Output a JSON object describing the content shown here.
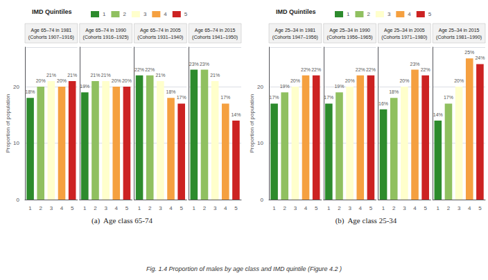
{
  "chart_data": [
    {
      "type": "bar",
      "title": "Age 65–74 in 1981\n(Cohorts 1907–1916)",
      "categories": [
        "1",
        "2",
        "3",
        "4",
        "5"
      ],
      "values": [
        18,
        20,
        21,
        20,
        21
      ],
      "value_labels": [
        "18%",
        "20%",
        "21%",
        "20%",
        "21%"
      ],
      "colors": [
        "#2d8b2d",
        "#90c060",
        "#ffffcc",
        "#f5a040",
        "#cc2222"
      ],
      "ylabel": "Proportion of population",
      "ylim": [
        0,
        27
      ],
      "yticks": [
        0,
        10,
        20
      ],
      "grid": true,
      "data_labels": true,
      "legend": "top",
      "legend_title": "IMD Quintiles",
      "annotations": [
        "(a)  Age class 65-74",
        "Fig. 1.4 Proportion of males by age class and IMD quintile (Figure 4.2 )"
      ]
    },
    {
      "type": "bar",
      "title": "Age 65–74 in 1990\n(Cohorts 1916–1925)",
      "categories": [
        "1",
        "2",
        "3",
        "4",
        "5"
      ],
      "values": [
        19,
        21,
        21,
        20,
        20
      ],
      "value_labels": [
        "19%",
        "21%",
        "21%",
        "20%",
        "20%"
      ],
      "colors": [
        "#2d8b2d",
        "#90c060",
        "#ffffcc",
        "#f5a040",
        "#cc2222"
      ],
      "ylim": [
        0,
        27
      ],
      "yticks": [
        0,
        10,
        20
      ],
      "grid": true,
      "data_labels": true,
      "tick_labels": "x"
    },
    {
      "type": "bar",
      "title": "Age 65–74 in 2005\n(Cohorts 1931–1940)",
      "categories": [
        "1",
        "2",
        "3",
        "4",
        "5"
      ],
      "values": [
        22,
        22,
        21,
        18,
        17
      ],
      "value_labels": [
        "22%",
        "22%",
        "21%",
        "18%",
        "17%"
      ],
      "colors": [
        "#2d8b2d",
        "#90c060",
        "#ffffcc",
        "#f5a040",
        "#cc2222"
      ],
      "ylim": [
        0,
        27
      ],
      "yticks": [
        0,
        10,
        20
      ],
      "grid": true,
      "data_labels": true,
      "tick_labels": "x"
    },
    {
      "type": "bar",
      "title": "Age 65–74 in 2015\n(Cohorts 1941–1950)",
      "categories": [
        "1",
        "2",
        "3",
        "4",
        "5"
      ],
      "values": [
        23,
        23,
        21,
        17,
        14
      ],
      "value_labels": [
        "23%",
        "23%",
        "21%",
        "17%",
        "14%"
      ],
      "colors": [
        "#2d8b2d",
        "#90c060",
        "#ffffcc",
        "#f5a040",
        "#cc2222"
      ],
      "ylim": [
        0,
        27
      ],
      "yticks": [
        0,
        10,
        20
      ],
      "grid": true,
      "data_labels": true,
      "tick_labels": "x"
    },
    {
      "type": "bar",
      "title": "Age 25–34 in 1981\n(Cohorts 1947–1956)",
      "categories": [
        "1",
        "2",
        "3",
        "4",
        "5"
      ],
      "values": [
        17,
        19,
        20,
        22,
        22
      ],
      "value_labels": [
        "17%",
        "19%",
        "20%",
        "22%",
        "22%"
      ],
      "colors": [
        "#2d8b2d",
        "#90c060",
        "#ffffcc",
        "#f5a040",
        "#cc2222"
      ],
      "ylabel": "Proportion of population",
      "ylim": [
        0,
        27
      ],
      "yticks": [
        0,
        10,
        20
      ],
      "grid": true,
      "data_labels": true,
      "legend": "top",
      "legend_title": "IMD Quintiles",
      "annotations": [
        "(b)  Age class 25-34"
      ]
    },
    {
      "type": "bar",
      "title": "Age 25–34 in 1990\n(Cohorts 1956–1965)",
      "categories": [
        "1",
        "2",
        "3",
        "4",
        "5"
      ],
      "values": [
        17,
        19,
        20,
        22,
        22
      ],
      "value_labels": [
        "17%",
        "19%",
        "20%",
        "22%",
        "22%"
      ],
      "colors": [
        "#2d8b2d",
        "#90c060",
        "#ffffcc",
        "#f5a040",
        "#cc2222"
      ],
      "ylim": [
        0,
        27
      ],
      "yticks": [
        0,
        10,
        20
      ],
      "grid": true,
      "data_labels": true,
      "tick_labels": "x"
    },
    {
      "type": "bar",
      "title": "Age 25–34 in 2005\n(Cohorts 1971–1980)",
      "categories": [
        "1",
        "2",
        "3",
        "4",
        "5"
      ],
      "values": [
        16,
        18,
        20,
        23,
        22
      ],
      "value_labels": [
        "16%",
        "18%",
        "20%",
        "23%",
        "22%"
      ],
      "colors": [
        "#2d8b2d",
        "#90c060",
        "#ffffcc",
        "#f5a040",
        "#cc2222"
      ],
      "ylim": [
        0,
        27
      ],
      "yticks": [
        0,
        10,
        20
      ],
      "grid": true,
      "data_labels": true,
      "tick_labels": "x"
    },
    {
      "type": "bar",
      "title": "Age 25–34 in 2015\n(Cohorts 1981–1990)",
      "categories": [
        "1",
        "2",
        "3",
        "4",
        "5"
      ],
      "values": [
        14,
        17,
        20,
        25,
        24
      ],
      "value_labels": [
        "14%",
        "17%",
        "20%",
        "25%",
        "24%"
      ],
      "colors": [
        "#2d8b2d",
        "#90c060",
        "#ffffcc",
        "#f5a040",
        "#cc2222"
      ],
      "ylim": [
        0,
        27
      ],
      "yticks": [
        0,
        10,
        20
      ],
      "grid": true,
      "data_labels": true,
      "tick_labels": "x"
    }
  ]
}
